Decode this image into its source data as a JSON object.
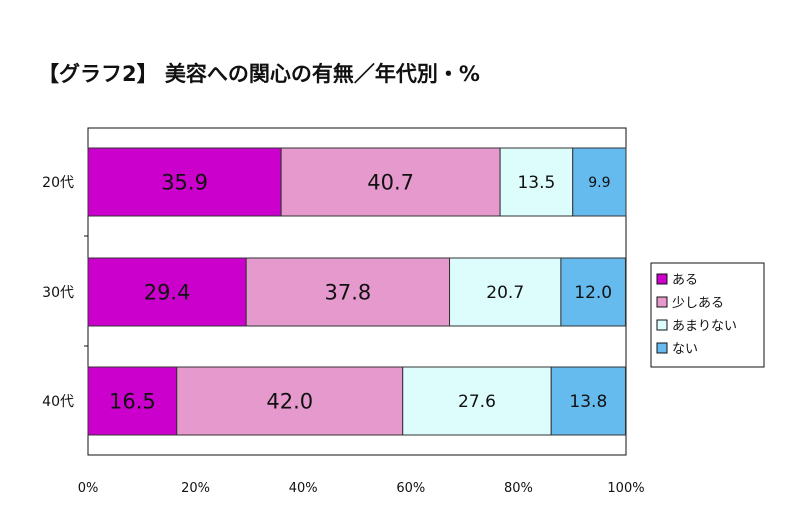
{
  "chart_data": {
    "type": "bar",
    "orientation": "horizontal",
    "stacked": true,
    "title": "【グラフ2】 美容への関心の有無／年代別・%",
    "categories": [
      "20代",
      "30代",
      "40代"
    ],
    "series": [
      {
        "name": "ある",
        "values": [
          35.9,
          29.4,
          16.5
        ],
        "color": "#cc00cc"
      },
      {
        "name": "少しある",
        "values": [
          40.7,
          37.8,
          42.0
        ],
        "color": "#e699cc"
      },
      {
        "name": "あまりない",
        "values": [
          13.5,
          20.7,
          27.6
        ],
        "color": "#ddfcfc"
      },
      {
        "name": "ない",
        "values": [
          9.9,
          12.0,
          13.8
        ],
        "color": "#66bbee"
      }
    ],
    "xlim": [
      0,
      100
    ],
    "xticks": [
      "0%",
      "20%",
      "40%",
      "60%",
      "80%",
      "100%"
    ],
    "grid": false,
    "legend_position": "right"
  }
}
